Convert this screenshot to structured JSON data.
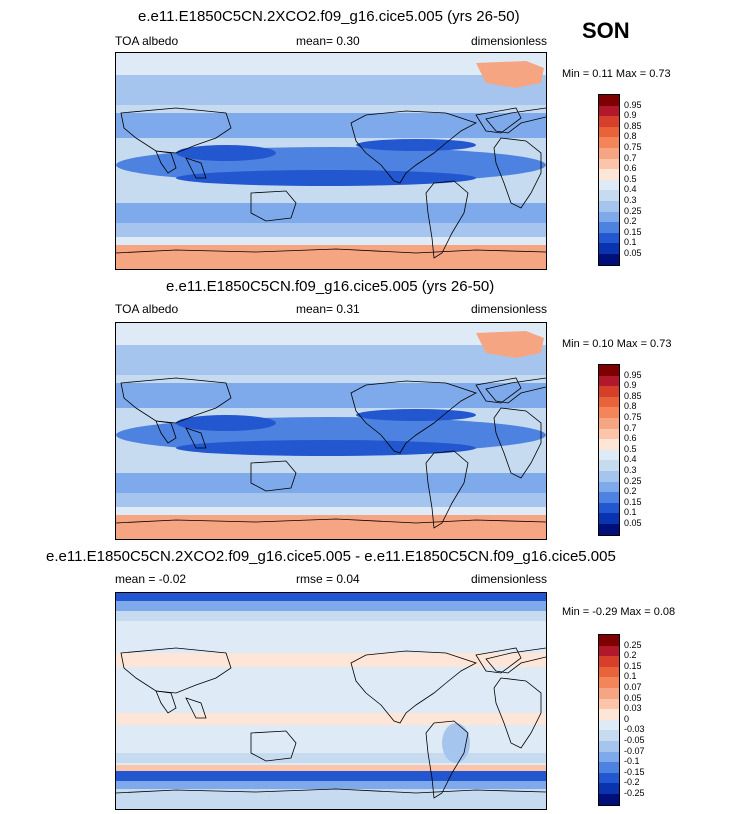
{
  "season": "SON",
  "panels": [
    {
      "title": "e.e11.E1850C5CN.2XCO2.f09_g16.cice5.005 (yrs 26-50)",
      "left_label": "TOA albedo",
      "center_label": "mean=   0.30",
      "right_label": "dimensionless",
      "minmax": "Min =   0.11 Max =   0.73",
      "colorbar": {
        "levels": [
          "0.95",
          "0.9",
          "0.85",
          "0.8",
          "0.75",
          "0.7",
          "0.6",
          "0.5",
          "0.4",
          "0.3",
          "0.25",
          "0.2",
          "0.15",
          "0.1",
          "0.05"
        ],
        "colors": [
          "#7f0000",
          "#b2182b",
          "#d6402a",
          "#e8633a",
          "#f4845a",
          "#f6a582",
          "#fcc5a9",
          "#fde6d8",
          "#deebf7",
          "#c6dbef",
          "#a6c5ee",
          "#7ea9ea",
          "#4d82e0",
          "#2257d0",
          "#0a33b0",
          "#000f7a"
        ]
      }
    },
    {
      "title": "e.e11.E1850C5CN.f09_g16.cice5.005 (yrs 26-50)",
      "left_label": "TOA albedo",
      "center_label": "mean=   0.31",
      "right_label": "dimensionless",
      "minmax": "Min =   0.10 Max =   0.73",
      "colorbar": {
        "levels": [
          "0.95",
          "0.9",
          "0.85",
          "0.8",
          "0.75",
          "0.7",
          "0.6",
          "0.5",
          "0.4",
          "0.3",
          "0.25",
          "0.2",
          "0.15",
          "0.1",
          "0.05"
        ],
        "colors": [
          "#7f0000",
          "#b2182b",
          "#d6402a",
          "#e8633a",
          "#f4845a",
          "#f6a582",
          "#fcc5a9",
          "#fde6d8",
          "#deebf7",
          "#c6dbef",
          "#a6c5ee",
          "#7ea9ea",
          "#4d82e0",
          "#2257d0",
          "#0a33b0",
          "#000f7a"
        ]
      }
    },
    {
      "title": "e.e11.E1850C5CN.2XCO2.f09_g16.cice5.005 - e.e11.E1850C5CN.f09_g16.cice5.005",
      "left_label": "mean = -0.02",
      "center_label": "rmse =  0.04",
      "right_label": "dimensionless",
      "minmax": "Min =  -0.29 Max =   0.08",
      "colorbar": {
        "levels": [
          "0.25",
          "0.2",
          "0.15",
          "0.1",
          "0.07",
          "0.05",
          "0.03",
          "0",
          "-0.03",
          "-0.05",
          "-0.07",
          "-0.1",
          "-0.15",
          "-0.2",
          "-0.25"
        ],
        "colors": [
          "#7f0000",
          "#b2182b",
          "#d6402a",
          "#e8633a",
          "#f4845a",
          "#f6a582",
          "#fcc5a9",
          "#fde6d8",
          "#deebf7",
          "#c6dbef",
          "#a6c5ee",
          "#7ea9ea",
          "#4d82e0",
          "#2257d0",
          "#0a33b0",
          "#000f7a"
        ]
      }
    }
  ]
}
